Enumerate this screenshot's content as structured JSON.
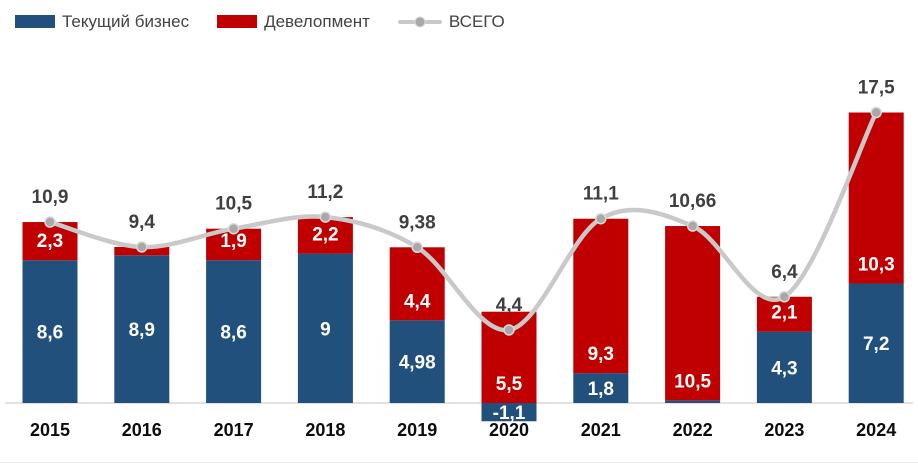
{
  "legend": {
    "items": [
      {
        "label": "Текущий бизнес",
        "swatch": "blue-rect"
      },
      {
        "label": "Девелопмент",
        "swatch": "red-rect"
      },
      {
        "label": "ВСЕГО",
        "swatch": "gray-line-with-dot"
      }
    ]
  },
  "colors": {
    "current_business": "#21507C",
    "development": "#C00000",
    "total_line": "#C9C9C9",
    "marker_fill": "#A8A8A8",
    "marker_stroke": "#D9D9D9",
    "axis_line": "#D9D9D9",
    "total_label": "#3F3F3F",
    "bar_label": "#FFFFFF",
    "year_label": "#0D0D0D"
  },
  "chart_data": {
    "type": "bar",
    "subtype": "stacked-bars-with-smooth-total-line",
    "categories": [
      "2015",
      "2016",
      "2017",
      "2018",
      "2019",
      "2020",
      "2021",
      "2022",
      "2023",
      "2024"
    ],
    "series": [
      {
        "name": "Текущий бизнес",
        "role": "bar",
        "color_key": "current_business",
        "values": [
          8.6,
          8.9,
          8.6,
          9,
          4.98,
          -1.1,
          1.8,
          null,
          4.3,
          7.2
        ],
        "labels": [
          "8,6",
          "8,9",
          "8,6",
          "9",
          "4,98",
          "-1,1",
          "1,8",
          null,
          "4,3",
          "7,2"
        ]
      },
      {
        "name": "Девелопмент",
        "role": "bar",
        "color_key": "development",
        "values": [
          2.3,
          null,
          1.9,
          2.2,
          4.4,
          5.5,
          9.3,
          10.5,
          2.1,
          10.3
        ],
        "labels": [
          "2,3",
          null,
          "1,9",
          "2,2",
          "4,4",
          "5,5",
          "9,3",
          "10,5",
          "2,1",
          "10,3"
        ]
      },
      {
        "name": "ВСЕГО",
        "role": "line",
        "color_key": "total_line",
        "values": [
          10.9,
          9.4,
          10.5,
          11.2,
          9.38,
          4.4,
          11.1,
          10.66,
          6.4,
          17.5
        ],
        "labels": [
          "10,9",
          "9,4",
          "10,5",
          "11,2",
          "9,38",
          "4,4",
          "11,1",
          "10,66",
          "6,4",
          "17,5"
        ]
      }
    ],
    "ylim": [
      -1.5,
      18
    ],
    "grid": false,
    "y_axis_visible": false,
    "legend_position": "top-left"
  }
}
